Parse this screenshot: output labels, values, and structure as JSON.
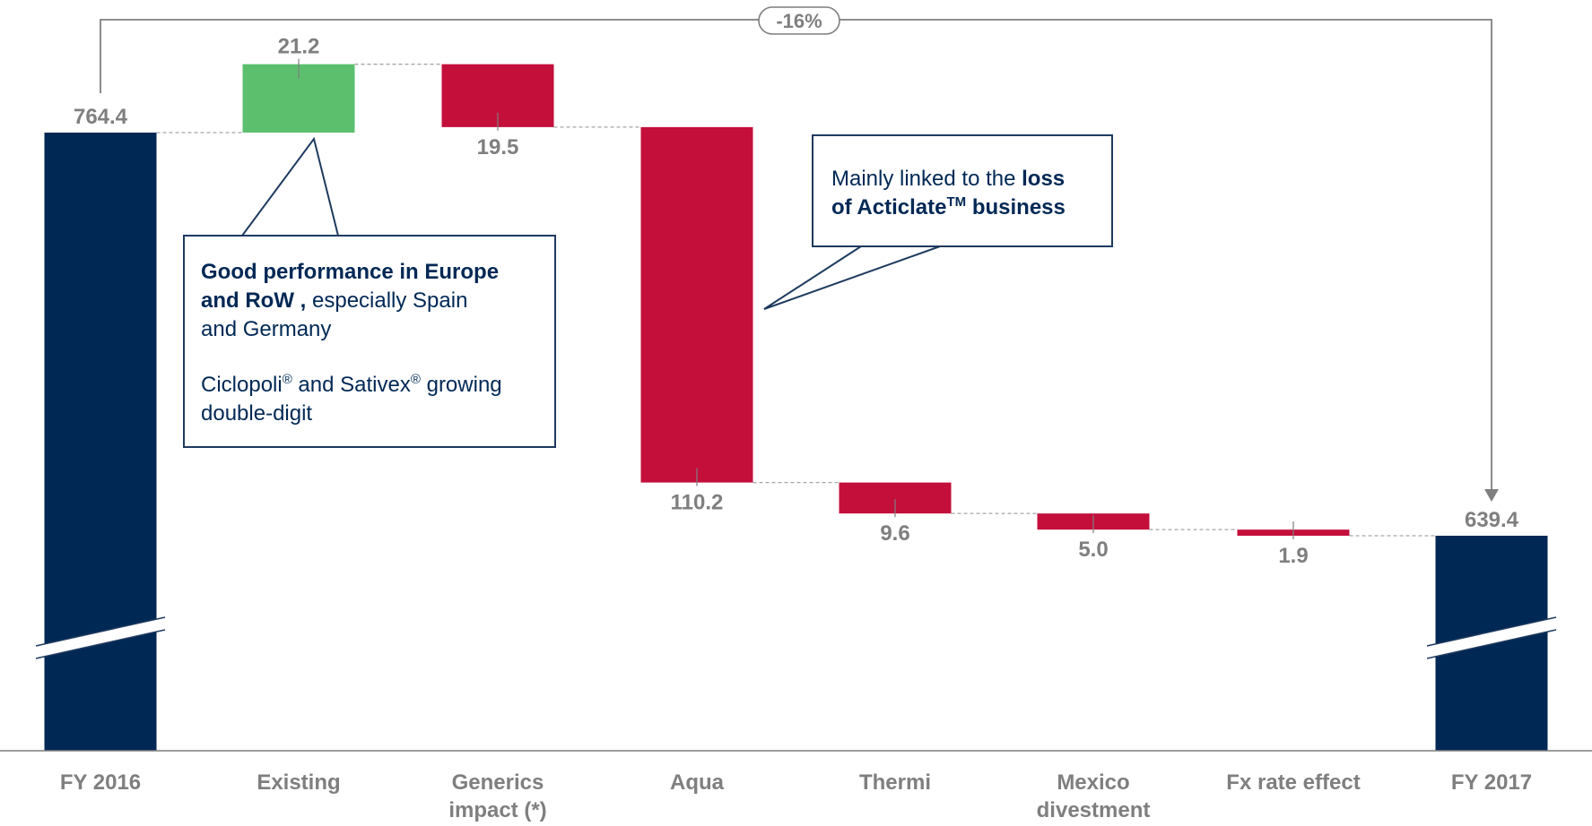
{
  "chart_data": {
    "type": "waterfall",
    "categories": [
      "FY 2016",
      "Existing",
      "Generics impact (*)",
      "Aqua",
      "Thermi",
      "Mexico divestment",
      "Fx rate effect",
      "FY 2017"
    ],
    "category_lines": [
      [
        "FY 2016"
      ],
      [
        "Existing"
      ],
      [
        "Generics",
        "impact (*)"
      ],
      [
        "Aqua"
      ],
      [
        "Thermi"
      ],
      [
        "Mexico",
        "divestment"
      ],
      [
        "Fx rate effect"
      ],
      [
        "FY 2017"
      ]
    ],
    "kinds": [
      "total",
      "increase",
      "decrease",
      "decrease",
      "decrease",
      "decrease",
      "decrease",
      "total"
    ],
    "values": [
      764.4,
      21.2,
      19.5,
      110.2,
      9.6,
      5.0,
      1.9,
      639.4
    ],
    "value_labels": [
      "764.4",
      "21.2",
      "19.5",
      "110.2",
      "9.6",
      "5.0",
      "1.9",
      "639.4"
    ],
    "overall_change_label": "-16%",
    "axis_break": true,
    "colors": {
      "total": "#002855",
      "increase": "#5bbf6e",
      "decrease": "#c40f3b",
      "connector": "#a6a6a6",
      "label": "#7f7f7f"
    }
  },
  "callouts": {
    "europe": {
      "line1_bold": "Good performance in Europe",
      "line2_bold": "and RoW ,",
      "line2_rest": " especially Spain",
      "line3": "and Germany",
      "growth_part1": "Ciclopoli",
      "growth_mark1": "®",
      "growth_part2": " and Sativex",
      "growth_mark2": "®",
      "growth_part3": " growing",
      "growth_line2": "double-digit"
    },
    "acticlate": {
      "line1_text": "Mainly linked to the ",
      "line1_bold": "loss",
      "line2_bold": "of Acticlate",
      "line2_mark": "TM",
      "line2_bold_end": " business"
    }
  }
}
